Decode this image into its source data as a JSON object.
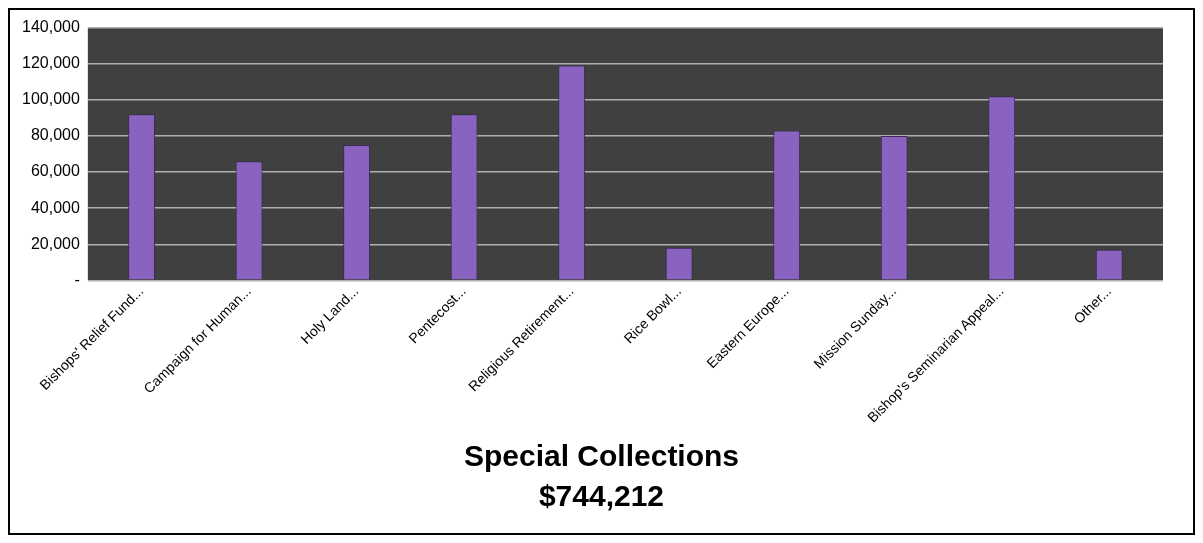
{
  "chart_data": {
    "type": "bar",
    "title": "Special Collections",
    "subtitle": "$744,212",
    "categories": [
      "Bishops' Relief Fund...",
      "Campaign for Human...",
      "Holy Land...",
      "Pentecost...",
      "Religious Retirement...",
      "Rice Bowl...",
      "Eastern Europe...",
      "Mission Sunday...",
      "Bishop's Seminarian Appeal...",
      "Other..."
    ],
    "values": [
      92000,
      66000,
      75000,
      92000,
      119000,
      18000,
      83000,
      80000,
      102000,
      17000
    ],
    "color": "#8a63c0",
    "ylim": [
      0,
      140000
    ],
    "yticks": [
      {
        "value": 0,
        "label": "-"
      },
      {
        "value": 20000,
        "label": "20,000"
      },
      {
        "value": 40000,
        "label": "40,000"
      },
      {
        "value": 60000,
        "label": "60,000"
      },
      {
        "value": 80000,
        "label": "80,000"
      },
      {
        "value": 100000,
        "label": "100,000"
      },
      {
        "value": 120000,
        "label": "120,000"
      },
      {
        "value": 140000,
        "label": "140,000"
      }
    ],
    "grid": "y"
  }
}
